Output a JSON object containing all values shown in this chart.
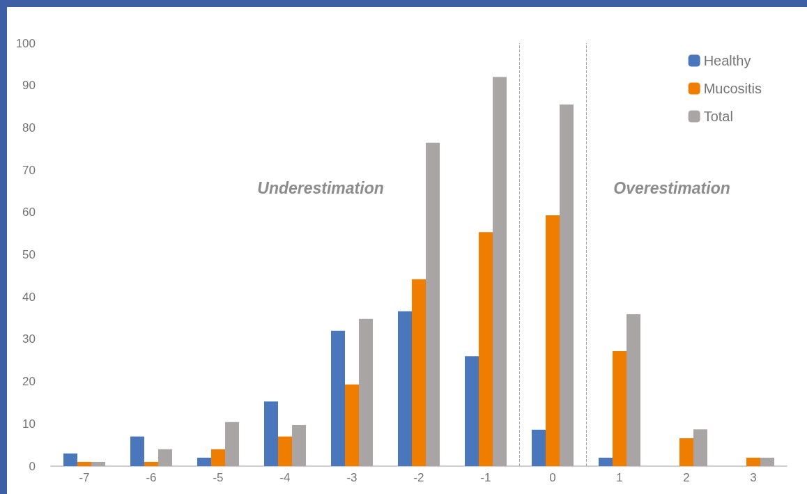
{
  "chart_data": {
    "type": "bar",
    "x": [
      -7,
      -6,
      -5,
      -4,
      -3,
      -2,
      -1,
      0,
      1,
      2,
      3
    ],
    "series": [
      {
        "name": "Healthy",
        "color": "#4a76bb",
        "values": [
          3,
          7,
          2,
          15.3,
          32,
          36.6,
          26,
          8.6,
          2,
          0,
          0
        ]
      },
      {
        "name": "Mucositis",
        "color": "#ef7d00",
        "values": [
          1,
          1,
          4,
          7,
          19.3,
          44.2,
          55.3,
          59.3,
          27.2,
          6.6,
          2
        ]
      },
      {
        "name": "Total",
        "color": "#aaa5a5",
        "values": [
          1,
          4,
          10.4,
          9.7,
          34.8,
          76.5,
          92,
          85.5,
          35.9,
          8.7,
          2
        ]
      }
    ],
    "xlim": [
      -7.5,
      3.5
    ],
    "xticks": [
      -7,
      -6,
      -5,
      -4,
      -3,
      -2,
      -1,
      0,
      1,
      2,
      3
    ],
    "ylim": [
      0,
      100
    ],
    "yticks": [
      0,
      10,
      20,
      30,
      40,
      50,
      60,
      70,
      80,
      90,
      100
    ],
    "ref_lines": [
      {
        "axis": "x",
        "value": -0.5,
        "color": "#a6a6a6",
        "line_style": "dashed"
      },
      {
        "axis": "x",
        "value": 0.5,
        "color": "#a6a6a6",
        "line_style": "dashed"
      }
    ],
    "annotations": [
      "Underestimation",
      "Overestimation"
    ],
    "grid": false,
    "legend": "top right"
  }
}
